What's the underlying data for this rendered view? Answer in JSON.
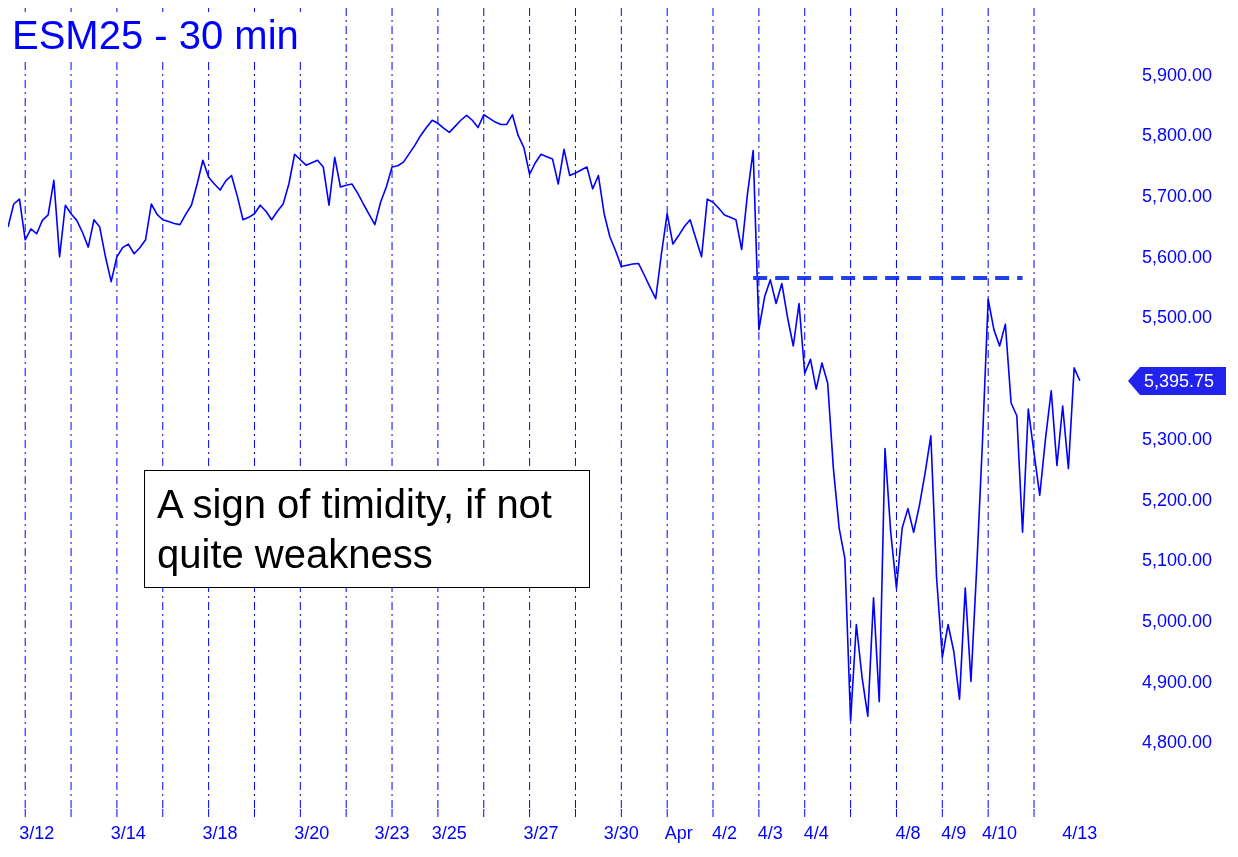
{
  "chart_data": {
    "type": "line",
    "title": "ESM25 - 30 min",
    "categories": [
      null,
      null,
      null,
      null,
      null,
      "3/12",
      null,
      null,
      null,
      null,
      null,
      null,
      null,
      null,
      null,
      null,
      null,
      null,
      null,
      null,
      null,
      "3/14",
      null,
      null,
      null,
      null,
      null,
      null,
      null,
      null,
      null,
      null,
      null,
      null,
      null,
      null,
      null,
      "3/18",
      null,
      null,
      null,
      null,
      null,
      null,
      null,
      null,
      null,
      null,
      null,
      null,
      null,
      null,
      null,
      "3/20",
      null,
      null,
      null,
      null,
      null,
      null,
      null,
      null,
      null,
      null,
      null,
      null,
      null,
      "3/23",
      null,
      null,
      null,
      null,
      null,
      null,
      null,
      null,
      null,
      "3/25",
      null,
      null,
      null,
      null,
      null,
      null,
      null,
      null,
      null,
      null,
      null,
      null,
      null,
      null,
      null,
      "3/27",
      null,
      null,
      null,
      null,
      null,
      null,
      null,
      null,
      null,
      null,
      null,
      null,
      null,
      "3/30",
      null,
      null,
      null,
      null,
      null,
      null,
      null,
      null,
      null,
      "Apr",
      null,
      null,
      null,
      null,
      null,
      null,
      null,
      "4/2",
      null,
      null,
      null,
      null,
      null,
      null,
      null,
      "4/3",
      null,
      null,
      null,
      null,
      null,
      null,
      null,
      "4/4",
      null,
      null,
      null,
      null,
      null,
      null,
      null,
      null,
      null,
      null,
      null,
      null,
      null,
      null,
      null,
      "4/8",
      null,
      null,
      null,
      null,
      null,
      null,
      null,
      "4/9",
      null,
      null,
      null,
      null,
      null,
      null,
      null,
      "4/10",
      null,
      null,
      null,
      null,
      null,
      null,
      null,
      null,
      null,
      null,
      null,
      null,
      null,
      "4/13",
      null,
      null,
      null,
      null,
      null,
      null,
      null
    ],
    "ylim": [
      4690,
      6010
    ],
    "yticks": [
      {
        "value": 4800,
        "label": "4,800.00"
      },
      {
        "value": 4900,
        "label": "4,900.00"
      },
      {
        "value": 5000,
        "label": "5,000.00"
      },
      {
        "value": 5100,
        "label": "5,100.00"
      },
      {
        "value": 5200,
        "label": "5,200.00"
      },
      {
        "value": 5300,
        "label": "5,300.00"
      },
      {
        "value": 5500,
        "label": "5,500.00"
      },
      {
        "value": 5600,
        "label": "5,600.00"
      },
      {
        "value": 5700,
        "label": "5,700.00"
      },
      {
        "value": 5800,
        "label": "5,800.00"
      },
      {
        "value": 5900,
        "label": "5,900.00"
      }
    ],
    "grid": "x",
    "marker": "none",
    "annotations": [
      "5,395.75",
      "A sign of timidity, if not quite weakness"
    ],
    "series": [
      {
        "color": "#0000ff",
        "line_style": "solid",
        "values": [
          5649,
          5687,
          5695,
          5628,
          5646,
          5638,
          5660,
          5669,
          5726,
          5600,
          5685,
          5671,
          5660,
          5640,
          5616,
          5661,
          5649,
          5600,
          5559,
          5600,
          5615,
          5621,
          5605,
          5615,
          5628,
          5687,
          5670,
          5661,
          5658,
          5655,
          5653,
          5670,
          5685,
          5720,
          5759,
          5731,
          5720,
          5710,
          5725,
          5734,
          5700,
          5661,
          5665,
          5671,
          5685,
          5675,
          5661,
          5675,
          5687,
          5720,
          5769,
          5760,
          5751,
          5755,
          5759,
          5748,
          5685,
          5764,
          5715,
          5718,
          5720,
          5705,
          5687,
          5670,
          5653,
          5690,
          5715,
          5748,
          5750,
          5756,
          5770,
          5784,
          5800,
          5813,
          5825,
          5820,
          5812,
          5805,
          5815,
          5825,
          5833,
          5825,
          5813,
          5834,
          5828,
          5822,
          5818,
          5818,
          5834,
          5800,
          5780,
          5736,
          5755,
          5769,
          5765,
          5761,
          5720,
          5777,
          5734,
          5738,
          5743,
          5748,
          5712,
          5734,
          5671,
          5633,
          5610,
          5584,
          5586,
          5588,
          5589,
          5570,
          5550,
          5531,
          5605,
          5671,
          5621,
          5635,
          5650,
          5661,
          5630,
          5600,
          5695,
          5690,
          5680,
          5669,
          5665,
          5661,
          5612,
          5703,
          5775,
          5480,
          5534,
          5562,
          5523,
          5556,
          5500,
          5453,
          5523,
          5408,
          5431,
          5382,
          5425,
          5392,
          5251,
          5153,
          5103,
          4835,
          4994,
          4907,
          4843,
          5038,
          4867,
          5284,
          5146,
          5054,
          5153,
          5185,
          5146,
          5190,
          5244,
          5305,
          5071,
          4940,
          4994,
          4950,
          4871,
          5054,
          4900,
          5087,
          5294,
          5530,
          5480,
          5453,
          5489,
          5359,
          5338,
          5146,
          5349,
          5277,
          5207,
          5300,
          5379,
          5256,
          5354,
          5251,
          5417,
          5395.75,
          null,
          null,
          null,
          null,
          null,
          null,
          null
        ]
      },
      {
        "color": "#2040e8",
        "line_style": "dashed",
        "values": [
          null,
          null,
          null,
          null,
          null,
          null,
          null,
          null,
          null,
          null,
          null,
          null,
          null,
          null,
          null,
          null,
          null,
          null,
          null,
          null,
          null,
          null,
          null,
          null,
          null,
          null,
          null,
          null,
          null,
          null,
          null,
          null,
          null,
          null,
          null,
          null,
          null,
          null,
          null,
          null,
          null,
          null,
          null,
          null,
          null,
          null,
          null,
          null,
          null,
          null,
          null,
          null,
          null,
          null,
          null,
          null,
          null,
          null,
          null,
          null,
          null,
          null,
          null,
          null,
          null,
          null,
          null,
          null,
          null,
          null,
          null,
          null,
          null,
          null,
          null,
          null,
          null,
          null,
          null,
          null,
          null,
          null,
          null,
          null,
          null,
          null,
          null,
          null,
          null,
          null,
          null,
          null,
          null,
          null,
          null,
          null,
          null,
          null,
          null,
          null,
          null,
          null,
          null,
          null,
          null,
          null,
          null,
          null,
          null,
          null,
          null,
          null,
          null,
          null,
          null,
          null,
          null,
          null,
          null,
          null,
          null,
          null,
          null,
          null,
          null,
          null,
          null,
          null,
          null,
          null,
          5565,
          5565,
          5565,
          5565,
          5565,
          5565,
          5565,
          5565,
          5565,
          5565,
          5565,
          5565,
          5565,
          5565,
          5565,
          5565,
          5565,
          5565,
          5565,
          5565,
          5565,
          5565,
          5565,
          5565,
          5565,
          5565,
          5565,
          5565,
          5565,
          5565,
          5565,
          5565,
          5565,
          5565,
          5565,
          5565,
          5565,
          5565,
          5565,
          5565,
          5565,
          5565,
          5565,
          5565,
          5565,
          5565,
          5565,
          5565,
          null,
          null,
          null,
          null,
          null,
          null,
          null,
          null,
          null,
          null,
          null,
          null,
          null,
          null,
          null,
          null,
          null
        ]
      }
    ]
  }
}
